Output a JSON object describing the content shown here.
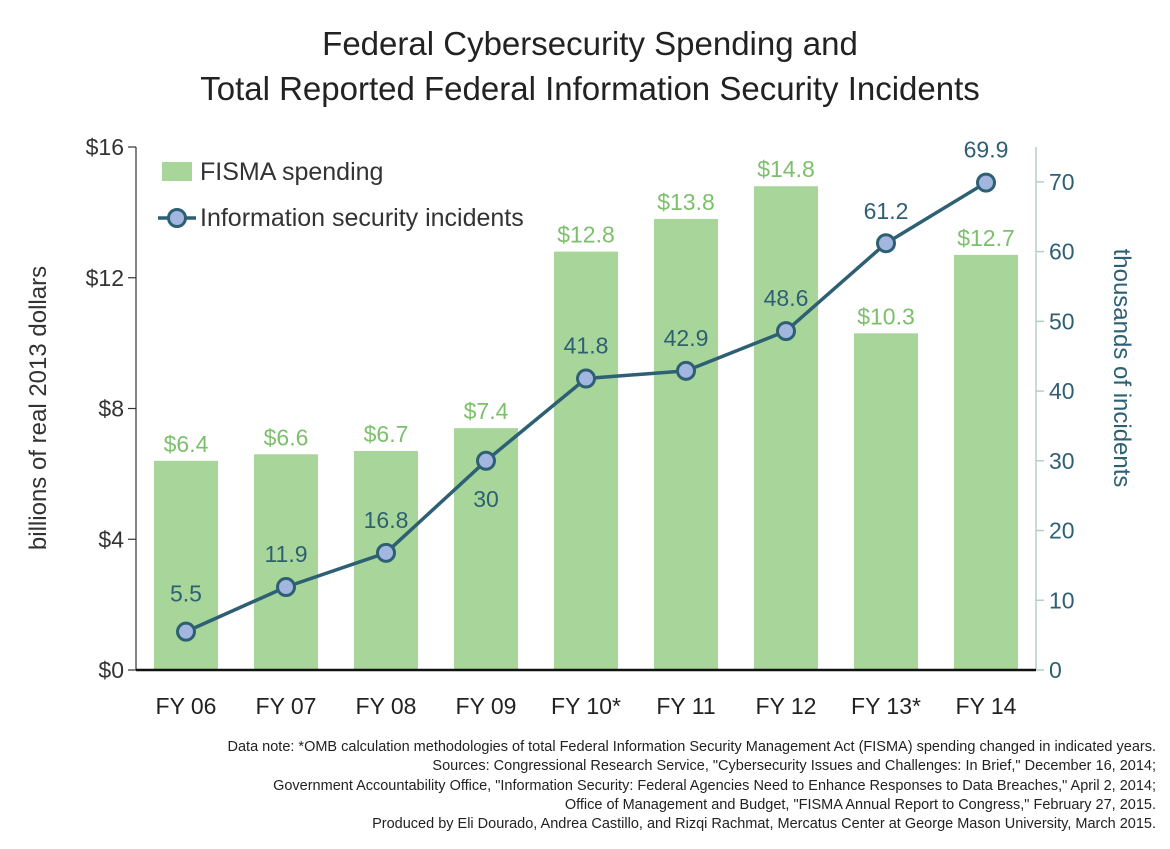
{
  "chart_data": {
    "type": "bar+line",
    "title_lines": [
      "Federal Cybersecurity Spending and",
      "Total Reported Federal Information Security Incidents"
    ],
    "categories": [
      "FY 06",
      "FY 07",
      "FY 08",
      "FY 09",
      "FY 10*",
      "FY 11",
      "FY 12",
      "FY 13*",
      "FY 14"
    ],
    "series": [
      {
        "name": "FISMA spending",
        "type": "bar",
        "axis": "left",
        "values": [
          6.4,
          6.6,
          6.7,
          7.4,
          12.8,
          13.8,
          14.8,
          10.3,
          12.7
        ],
        "labels": [
          "$6.4",
          "$6.6",
          "$6.7",
          "$7.4",
          "$12.8",
          "$13.8",
          "$14.8",
          "$10.3",
          "$12.7"
        ]
      },
      {
        "name": "Information security incidents",
        "type": "line",
        "axis": "right",
        "values": [
          5.5,
          11.9,
          16.8,
          30,
          41.8,
          42.9,
          48.6,
          61.2,
          69.9
        ],
        "labels": [
          "5.5",
          "11.9",
          "16.8",
          "30",
          "41.8",
          "42.9",
          "48.6",
          "61.2",
          "69.9"
        ]
      }
    ],
    "ylabel_left": "billions of real 2013 dollars",
    "ylabel_right": "thousands of incidents",
    "ylim_left": [
      0,
      16
    ],
    "ylim_right": [
      0,
      75
    ],
    "yticks_left": [
      0,
      4,
      8,
      12,
      16
    ],
    "yticks_left_labels": [
      "$0",
      "$4",
      "$8",
      "$12",
      "$16"
    ],
    "yticks_right": [
      0,
      10,
      20,
      30,
      40,
      50,
      60,
      70
    ],
    "yticks_right_labels": [
      "0",
      "10",
      "20",
      "30",
      "40",
      "50",
      "60",
      "70"
    ],
    "legend_position": "top-left",
    "grid": false
  },
  "colors": {
    "bar": "#a8d599",
    "bar_label": "#7cc06b",
    "line": "#2e6074",
    "marker_fill": "#a3b6e0",
    "axis_left": "#333333",
    "axis_right": "#2e6074",
    "axis_line_right": "#b3cfc5"
  },
  "notes": [
    "Data note: *OMB calculation methodologies of total Federal Information Security Management Act (FISMA) spending changed in indicated years.",
    "Sources: Congressional Research Service, \"Cybersecurity Issues and Challenges: In Brief,\" December 16, 2014;",
    "Government Accountability Office, \"Information Security: Federal Agencies Need to Enhance Responses to Data Breaches,\" April 2, 2014;",
    "Office of Management and Budget, \"FISMA Annual Report to Congress,\" February 27, 2015.",
    "Produced by Eli Dourado, Andrea Castillo, and Rizqi Rachmat, Mercatus Center at George Mason University, March 2015."
  ]
}
